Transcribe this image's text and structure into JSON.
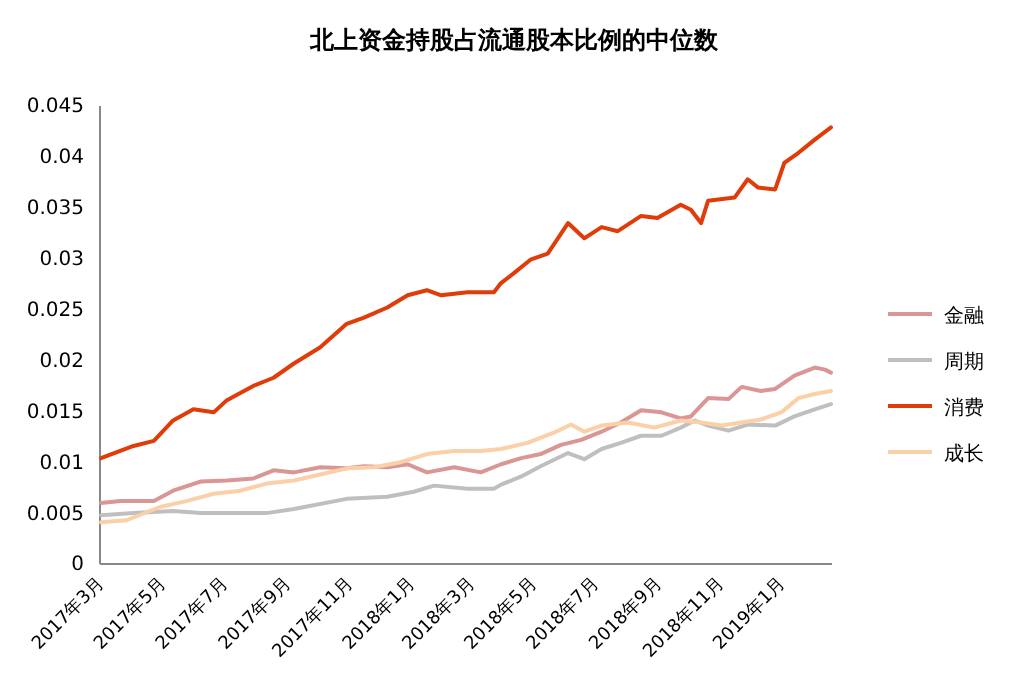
{
  "chart_data": {
    "type": "line",
    "title": "北上资金持股占流通股本比例的中位数",
    "xlim": [
      "2017-03-01",
      "2019-02-20"
    ],
    "xticks": [
      {
        "value": "2017-03-01",
        "label": "2017年3月"
      },
      {
        "value": "2017-05-01",
        "label": "2017年5月"
      },
      {
        "value": "2017-07-01",
        "label": "2017年7月"
      },
      {
        "value": "2017-09-01",
        "label": "2017年9月"
      },
      {
        "value": "2017-11-01",
        "label": "2017年11月"
      },
      {
        "value": "2018-01-01",
        "label": "2018年1月"
      },
      {
        "value": "2018-03-01",
        "label": "2018年3月"
      },
      {
        "value": "2018-05-01",
        "label": "2018年5月"
      },
      {
        "value": "2018-07-01",
        "label": "2018年7月"
      },
      {
        "value": "2018-09-01",
        "label": "2018年9月"
      },
      {
        "value": "2018-11-01",
        "label": "2018年11月"
      },
      {
        "value": "2019-01-01",
        "label": "2019年1月"
      }
    ],
    "ylim": [
      0,
      0.045
    ],
    "yticks": [
      0,
      0.005,
      0.01,
      0.015,
      0.02,
      0.025,
      0.03,
      0.035,
      0.04,
      0.045
    ],
    "grid": false,
    "legend": "right",
    "marker": "none",
    "line_style": "solid",
    "series": [
      {
        "name": "金融",
        "color": "#d99694",
        "x": [
          "2017-03-02",
          "2017-03-21",
          "2017-04-23",
          "2017-05-12",
          "2017-06-08",
          "2017-07-04",
          "2017-07-30",
          "2017-08-19",
          "2017-09-08",
          "2017-10-04",
          "2017-10-30",
          "2017-11-16",
          "2017-12-09",
          "2017-12-29",
          "2018-01-17",
          "2018-02-13",
          "2018-03-11",
          "2018-03-31",
          "2018-04-20",
          "2018-05-09",
          "2018-05-29",
          "2018-06-18",
          "2018-07-08",
          "2018-07-27",
          "2018-08-16",
          "2018-09-05",
          "2018-09-24",
          "2018-10-04",
          "2018-10-21",
          "2018-11-10",
          "2018-11-23",
          "2018-12-12",
          "2018-12-26",
          "2019-01-14",
          "2019-02-03",
          "2019-02-13",
          "2019-02-19"
        ],
        "values": [
          0.006,
          0.0062,
          0.0062,
          0.0072,
          0.0081,
          0.0082,
          0.0084,
          0.0092,
          0.009,
          0.0095,
          0.0094,
          0.0096,
          0.0095,
          0.0098,
          0.009,
          0.0095,
          0.009,
          0.0098,
          0.0104,
          0.0108,
          0.0117,
          0.0122,
          0.013,
          0.0139,
          0.0151,
          0.0149,
          0.0143,
          0.0145,
          0.0163,
          0.0162,
          0.0174,
          0.017,
          0.0172,
          0.0185,
          0.0193,
          0.0191,
          0.0188
        ]
      },
      {
        "name": "周期",
        "color": "#bfbfbf",
        "x": [
          "2017-03-02",
          "2017-04-03",
          "2017-05-12",
          "2017-06-08",
          "2017-07-04",
          "2017-08-12",
          "2017-09-08",
          "2017-10-30",
          "2017-12-09",
          "2018-01-04",
          "2018-01-24",
          "2018-02-26",
          "2018-03-24",
          "2018-03-31",
          "2018-04-20",
          "2018-05-09",
          "2018-06-05",
          "2018-06-21",
          "2018-07-08",
          "2018-07-27",
          "2018-08-16",
          "2018-09-05",
          "2018-09-24",
          "2018-10-08",
          "2018-10-21",
          "2018-11-10",
          "2018-11-29",
          "2018-12-26",
          "2019-01-14",
          "2019-02-03",
          "2019-02-19"
        ],
        "values": [
          0.0048,
          0.005,
          0.0052,
          0.005,
          0.005,
          0.005,
          0.0054,
          0.0064,
          0.0066,
          0.0071,
          0.0077,
          0.0074,
          0.0074,
          0.0078,
          0.0086,
          0.0096,
          0.0109,
          0.0103,
          0.0113,
          0.0119,
          0.0126,
          0.0126,
          0.0134,
          0.0141,
          0.0136,
          0.0131,
          0.0137,
          0.0136,
          0.0145,
          0.0152,
          0.0157
        ]
      },
      {
        "name": "消费",
        "color": "#e03c0a",
        "x": [
          "2017-03-02",
          "2017-04-03",
          "2017-04-23",
          "2017-05-12",
          "2017-06-01",
          "2017-06-21",
          "2017-07-04",
          "2017-07-30",
          "2017-08-19",
          "2017-09-08",
          "2017-10-04",
          "2017-10-30",
          "2017-11-16",
          "2017-12-09",
          "2017-12-29",
          "2018-01-17",
          "2018-01-31",
          "2018-02-26",
          "2018-03-24",
          "2018-03-31",
          "2018-04-13",
          "2018-04-29",
          "2018-05-16",
          "2018-06-05",
          "2018-06-21",
          "2018-07-08",
          "2018-07-24",
          "2018-08-16",
          "2018-09-01",
          "2018-09-24",
          "2018-10-04",
          "2018-10-14",
          "2018-10-21",
          "2018-11-16",
          "2018-11-29",
          "2018-12-09",
          "2018-12-26",
          "2019-01-04",
          "2019-01-18",
          "2019-02-03",
          "2019-02-19"
        ],
        "values": [
          0.0104,
          0.0116,
          0.0121,
          0.0141,
          0.0152,
          0.0149,
          0.0161,
          0.0175,
          0.0183,
          0.0197,
          0.0213,
          0.0236,
          0.0242,
          0.0252,
          0.0264,
          0.0269,
          0.0264,
          0.0267,
          0.0267,
          0.0276,
          0.0286,
          0.0299,
          0.0305,
          0.0335,
          0.032,
          0.0331,
          0.0327,
          0.0342,
          0.034,
          0.0353,
          0.0348,
          0.0335,
          0.0357,
          0.036,
          0.0378,
          0.037,
          0.0368,
          0.0394,
          0.0404,
          0.0417,
          0.0429
        ]
      },
      {
        "name": "成长",
        "color": "#fbcfa7",
        "x": [
          "2017-03-02",
          "2017-03-27",
          "2017-04-29",
          "2017-05-26",
          "2017-06-21",
          "2017-07-17",
          "2017-08-12",
          "2017-09-08",
          "2017-10-04",
          "2017-10-30",
          "2017-11-26",
          "2017-12-22",
          "2018-01-17",
          "2018-02-13",
          "2018-03-11",
          "2018-03-31",
          "2018-04-26",
          "2018-05-22",
          "2018-06-08",
          "2018-06-21",
          "2018-07-08",
          "2018-08-03",
          "2018-08-29",
          "2018-09-24",
          "2018-10-14",
          "2018-11-03",
          "2018-11-23",
          "2018-12-12",
          "2019-01-01",
          "2019-01-18",
          "2019-02-03",
          "2019-02-19"
        ],
        "values": [
          0.0041,
          0.0043,
          0.0056,
          0.0062,
          0.0069,
          0.0072,
          0.0079,
          0.0082,
          0.0088,
          0.0094,
          0.0095,
          0.01,
          0.0108,
          0.0111,
          0.0111,
          0.0113,
          0.0119,
          0.0129,
          0.0137,
          0.013,
          0.0136,
          0.0139,
          0.0134,
          0.0141,
          0.0139,
          0.0136,
          0.0139,
          0.0142,
          0.0149,
          0.0163,
          0.0167,
          0.017
        ]
      }
    ]
  }
}
